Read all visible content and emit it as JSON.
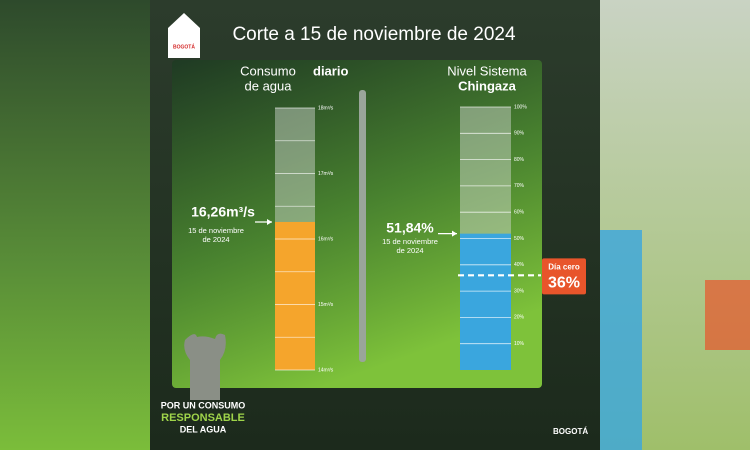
{
  "header": {
    "title": "Corte a 15 de noviembre de 2024",
    "logo": "BOGOTÁ"
  },
  "chart_data": [
    {
      "type": "bar",
      "title_lines": [
        "Consumo",
        "de agua",
        "diario"
      ],
      "values": [
        16.26
      ],
      "value_labels": [
        "16,26m³/s"
      ],
      "date_lines": [
        "15 de noviembre",
        "de 2024"
      ],
      "color": "#f5a52c",
      "ylim": [
        14,
        18
      ],
      "yticks": [
        {
          "value": 14,
          "label": "14m³/s"
        },
        {
          "value": 15,
          "label": "15m³/s"
        },
        {
          "value": 16,
          "label": "16m³/s"
        },
        {
          "value": 17,
          "label": "17m³/s"
        },
        {
          "value": 18,
          "label": "18m³/s"
        }
      ],
      "minor_yticks": [
        14.5,
        15.5,
        16.5,
        17.5
      ],
      "grid": true
    },
    {
      "type": "bar",
      "title_lines": [
        "Nivel Sistema",
        "Chingaza"
      ],
      "values": [
        51.84
      ],
      "value_labels": [
        "51,84%"
      ],
      "date_lines": [
        "15 de noviembre",
        "de 2024"
      ],
      "color": "#3aa6de",
      "ylim": [
        0,
        100
      ],
      "yticks": [
        {
          "value": 10,
          "label": "10%"
        },
        {
          "value": 20,
          "label": "20%"
        },
        {
          "value": 30,
          "label": "30%"
        },
        {
          "value": 40,
          "label": "40%"
        },
        {
          "value": 50,
          "label": "50%"
        },
        {
          "value": 60,
          "label": "60%"
        },
        {
          "value": 70,
          "label": "70%"
        },
        {
          "value": 80,
          "label": "80%"
        },
        {
          "value": 90,
          "label": "90%"
        },
        {
          "value": 100,
          "label": "100%"
        }
      ],
      "grid": true,
      "reference_line": {
        "value": 36,
        "label": "36%",
        "text": "Día cero"
      }
    }
  ],
  "footer": {
    "slogan": [
      "POR UN CONSUMO",
      "RESPONSABLE",
      "DEL AGUA"
    ],
    "logo": "BOGOTÁ"
  }
}
